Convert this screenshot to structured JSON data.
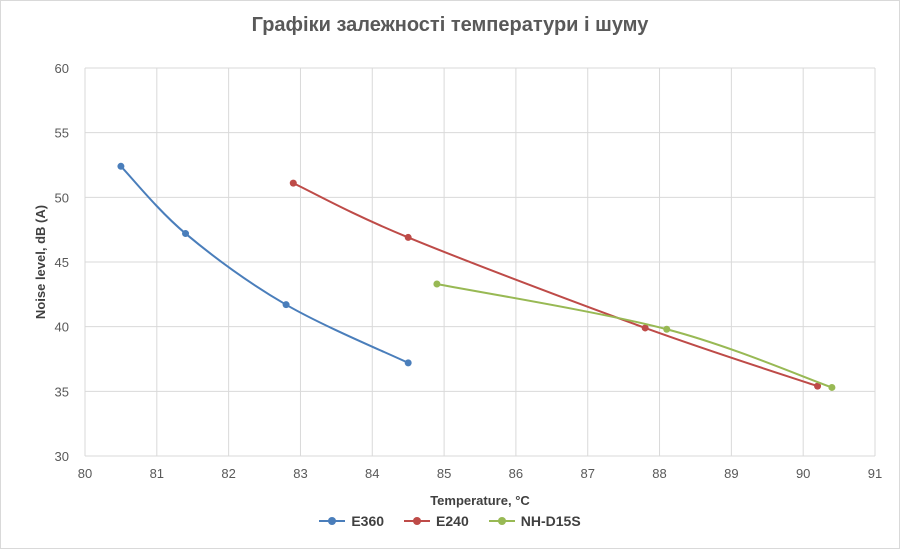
{
  "chart_data": {
    "type": "scatter",
    "title": "Графіки залежності температури і шуму",
    "xlabel": "Temperature, °C",
    "ylabel": "Noise level, dB (A)",
    "xlim": [
      80,
      91
    ],
    "ylim": [
      30,
      60
    ],
    "x_ticks": [
      "80",
      "81",
      "82",
      "83",
      "84",
      "85",
      "86",
      "87",
      "88",
      "89",
      "90",
      "91"
    ],
    "y_ticks": [
      "30",
      "35",
      "40",
      "45",
      "50",
      "55",
      "60"
    ],
    "grid": true,
    "smooth_lines": true,
    "legend_position": "bottom",
    "series": [
      {
        "name": "E360",
        "color": "#4a7ebb",
        "x": [
          80.5,
          81.4,
          82.8,
          84.5
        ],
        "y": [
          52.4,
          47.2,
          41.7,
          37.2
        ]
      },
      {
        "name": "E240",
        "color": "#be4b48",
        "x": [
          82.9,
          84.5,
          87.8,
          90.2
        ],
        "y": [
          51.1,
          46.9,
          39.9,
          35.4
        ]
      },
      {
        "name": "NH-D15S",
        "color": "#98b954",
        "x": [
          84.9,
          88.1,
          90.4
        ],
        "y": [
          43.3,
          39.8,
          35.3
        ]
      }
    ]
  }
}
